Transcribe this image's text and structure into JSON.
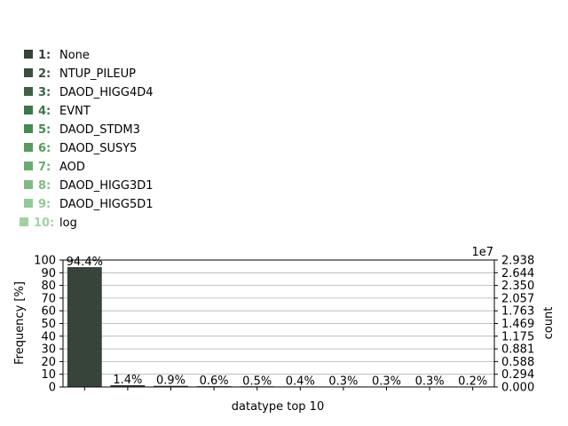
{
  "chart_data": {
    "type": "bar",
    "xlabel": "datatype top 10",
    "ylabel": "Frequency [%]",
    "ylabel_right": "count",
    "right_axis_multiplier": "1e7",
    "ylim": [
      0,
      100
    ],
    "ylim_right": [
      0,
      2.938
    ],
    "yticks": [
      "0",
      "10",
      "20",
      "30",
      "40",
      "50",
      "60",
      "70",
      "80",
      "90",
      "100"
    ],
    "yticks_right": [
      "0.000",
      "0.294",
      "0.588",
      "0.881",
      "1.175",
      "1.469",
      "1.763",
      "2.057",
      "2.350",
      "2.644",
      "2.938"
    ],
    "grid": true,
    "categories": [
      "None",
      "NTUP_PILEUP",
      "DAOD_HIGG4D4",
      "EVNT",
      "DAOD_STDM3",
      "DAOD_SUSY5",
      "AOD",
      "DAOD_HIGG3D1",
      "DAOD_HIGG5D1",
      "log"
    ],
    "values": [
      94.4,
      1.4,
      0.9,
      0.6,
      0.5,
      0.4,
      0.3,
      0.3,
      0.3,
      0.2
    ],
    "value_labels": [
      "94.4%",
      "1.4%",
      "0.9%",
      "0.6%",
      "0.5%",
      "0.4%",
      "0.3%",
      "0.3%",
      "0.3%",
      "0.2%"
    ],
    "legend_numbers": [
      "1:",
      "2:",
      "3:",
      "4:",
      "5:",
      "6:",
      "7:",
      "8:",
      "9:",
      "10:"
    ],
    "legend_placement": "top-left",
    "colors": [
      "#36443a",
      "#38503e",
      "#3b6343",
      "#3e7747",
      "#448b4e",
      "#559c5c",
      "#69ad6f",
      "#7fbc84",
      "#94c997",
      "#a2d2a3"
    ]
  }
}
